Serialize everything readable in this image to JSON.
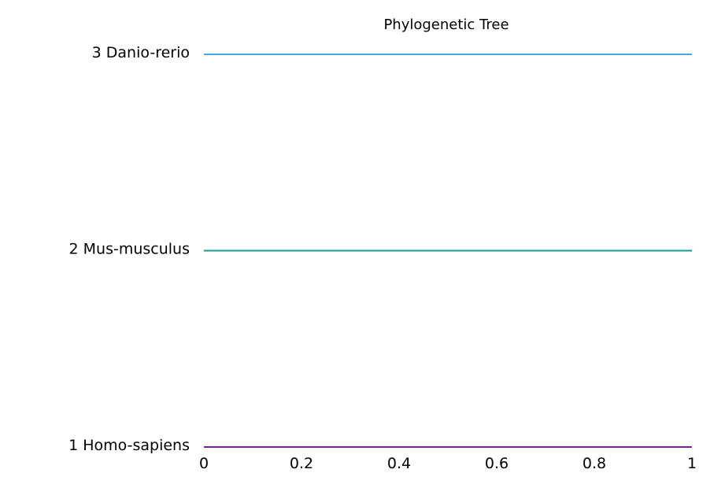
{
  "chart_data": {
    "type": "line",
    "title": "Phylogenetic Tree",
    "xlabel": "",
    "ylabel": "",
    "xlim": [
      0,
      1
    ],
    "x_ticks": [
      0,
      0.2,
      0.4,
      0.6,
      0.8,
      1
    ],
    "x_tick_labels": [
      "0",
      "0.2",
      "0.4",
      "0.6",
      "0.8",
      "1"
    ],
    "y_categories": [
      "1 Homo-sapiens",
      "2 Mus-musculus",
      "3 Danio-rerio"
    ],
    "grid": false,
    "series": [
      {
        "category": "1 Homo-sapiens",
        "x": [
          0,
          1
        ],
        "color": "#7b1fa2"
      },
      {
        "category": "2 Mus-musculus",
        "x": [
          0,
          1
        ],
        "color": "#179c8a"
      },
      {
        "category": "3 Danio-rerio",
        "x": [
          0,
          1
        ],
        "color": "#4aa8e0"
      }
    ]
  }
}
